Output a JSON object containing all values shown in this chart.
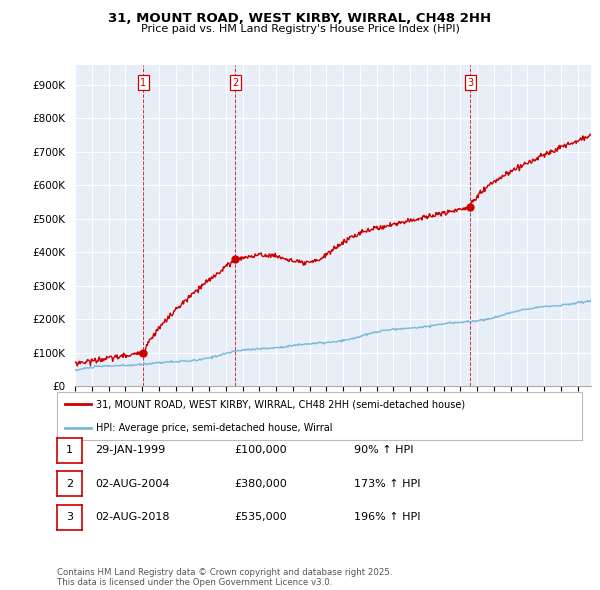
{
  "title": "31, MOUNT ROAD, WEST KIRBY, WIRRAL, CH48 2HH",
  "subtitle": "Price paid vs. HM Land Registry's House Price Index (HPI)",
  "ylabel_ticks": [
    "£0",
    "£100K",
    "£200K",
    "£300K",
    "£400K",
    "£500K",
    "£600K",
    "£700K",
    "£800K",
    "£900K"
  ],
  "ytick_values": [
    0,
    100000,
    200000,
    300000,
    400000,
    500000,
    600000,
    700000,
    800000,
    900000
  ],
  "ylim": [
    0,
    960000
  ],
  "xlim_start": 1995.0,
  "xlim_end": 2025.8,
  "sale_dates": [
    1999.08,
    2004.58,
    2018.58
  ],
  "sale_prices": [
    100000,
    380000,
    535000
  ],
  "sale_labels": [
    "1",
    "2",
    "3"
  ],
  "hpi_line_color": "#7ab8d9",
  "sale_line_color": "#cc0000",
  "sale_dot_color": "#cc0000",
  "dashed_line_color": "#cc0000",
  "legend_entry1": "31, MOUNT ROAD, WEST KIRBY, WIRRAL, CH48 2HH (semi-detached house)",
  "legend_entry2": "HPI: Average price, semi-detached house, Wirral",
  "table_entries": [
    {
      "label": "1",
      "date": "29-JAN-1999",
      "price": "£100,000",
      "hpi": "90% ↑ HPI"
    },
    {
      "label": "2",
      "date": "02-AUG-2004",
      "price": "£380,000",
      "hpi": "173% ↑ HPI"
    },
    {
      "label": "3",
      "date": "02-AUG-2018",
      "price": "£535,000",
      "hpi": "196% ↑ HPI"
    }
  ],
  "footnote": "Contains HM Land Registry data © Crown copyright and database right 2025.\nThis data is licensed under the Open Government Licence v3.0.",
  "background_color": "#ffffff",
  "plot_bg_color": "#e8eef8"
}
